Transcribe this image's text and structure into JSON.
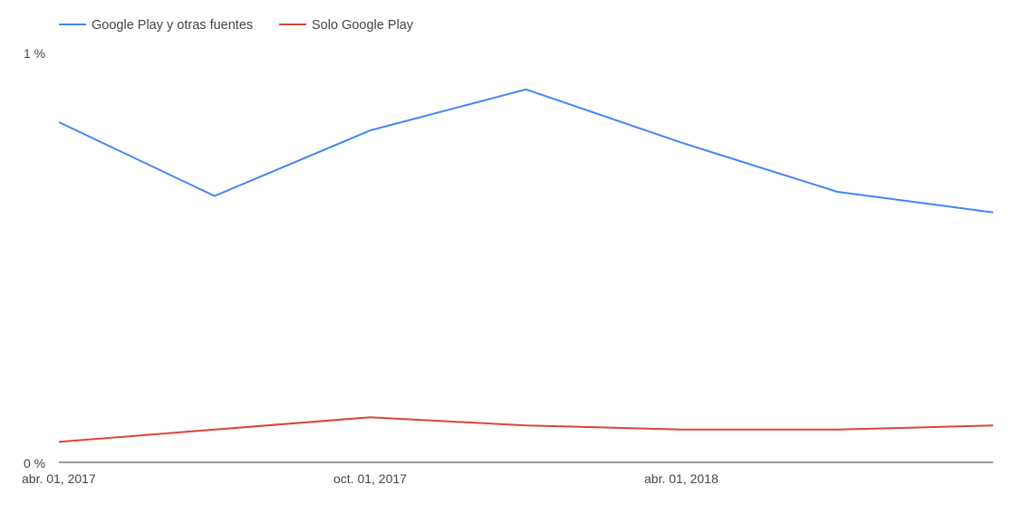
{
  "chart_data": {
    "type": "line",
    "x_tick_labels": [
      "abr. 01, 2017",
      "oct. 01, 2017",
      "abr. 01, 2018"
    ],
    "y_tick_labels": [
      "1 %",
      "0 %"
    ],
    "ylim": [
      0,
      1
    ],
    "y_unit": "%",
    "grid": false,
    "legend_position": "top-left",
    "series": [
      {
        "name": "Google Play y otras fuentes",
        "color": "#4285f4",
        "values": [
          0.83,
          0.65,
          0.81,
          0.91,
          0.78,
          0.66,
          0.61
        ]
      },
      {
        "name": "Solo Google Play",
        "color": "#db4437",
        "values": [
          0.05,
          0.08,
          0.11,
          0.09,
          0.08,
          0.08,
          0.09
        ]
      }
    ]
  }
}
